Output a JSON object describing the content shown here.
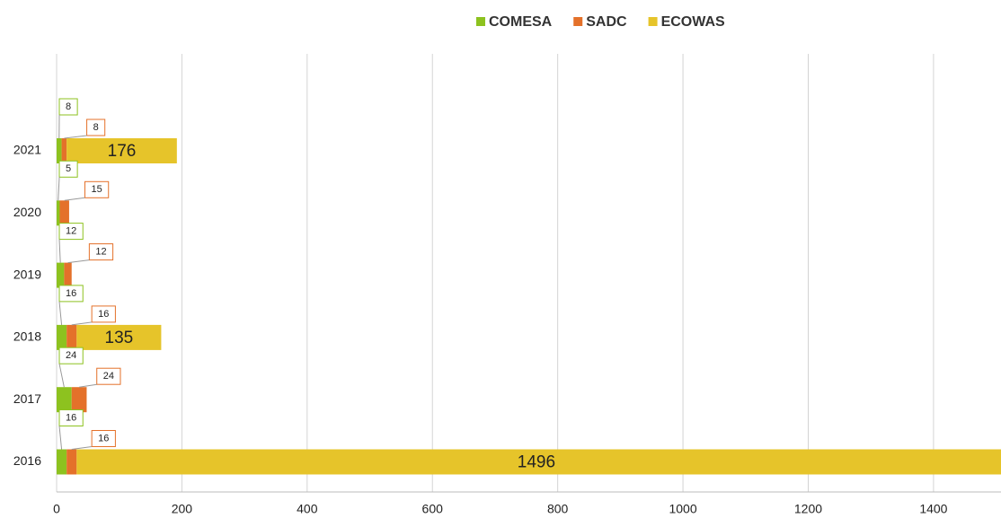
{
  "chart_data": {
    "type": "stacked-barh",
    "categories": [
      "2021",
      "2020",
      "2019",
      "2018",
      "2017",
      "2016"
    ],
    "series": [
      {
        "name": "COMESA",
        "color": "#8dc21f",
        "values": [
          8,
          5,
          12,
          16,
          24,
          16
        ]
      },
      {
        "name": "SADC",
        "color": "#e4712a",
        "values": [
          8,
          15,
          12,
          16,
          24,
          16
        ]
      },
      {
        "name": "ECOWAS",
        "color": "#e6c42a",
        "values": [
          176,
          null,
          null,
          135,
          null,
          1496
        ]
      }
    ],
    "xlim": [
      0,
      1500
    ],
    "xticks": [
      0,
      200,
      400,
      600,
      800,
      1000,
      1200,
      1400
    ],
    "grid": true
  }
}
